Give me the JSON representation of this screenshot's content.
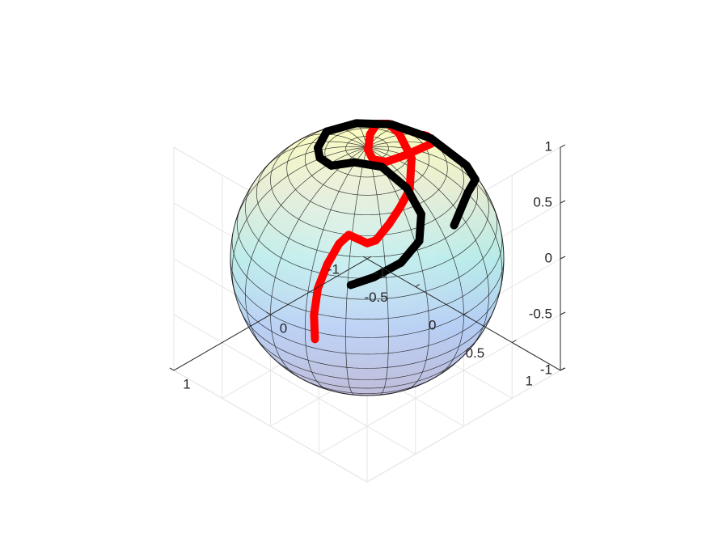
{
  "chart_data": {
    "type": "scatter",
    "subtype": "3d-sphere-trajectories",
    "title": "",
    "xlabel": "",
    "ylabel": "",
    "zlabel": "",
    "xlim": [
      -1,
      1
    ],
    "ylim": [
      -1,
      1
    ],
    "zlim": [
      -1,
      1
    ],
    "x_ticks": [
      "-1",
      "0",
      "1"
    ],
    "y_ticks": [
      "-1",
      "-0.5",
      "0",
      "0.5",
      "1"
    ],
    "z_ticks": [
      "-1",
      "-0.5",
      "0",
      "0.5",
      "1"
    ],
    "grid": true,
    "surface": {
      "shape": "unit-sphere",
      "colormap": "parula",
      "transparent": true
    },
    "colors": {
      "series_red": "#ff0000",
      "series_black": "#000000",
      "axis": "#262626",
      "grid": "#e6e6e6",
      "mesh": "#1a1a1a"
    },
    "series": [
      {
        "color": "red",
        "points": [
          [
            0.1,
            -0.44,
            -0.89
          ],
          [
            -0.03,
            -0.58,
            -0.81
          ],
          [
            -0.18,
            -0.69,
            -0.7
          ],
          [
            -0.33,
            -0.74,
            -0.58
          ],
          [
            -0.46,
            -0.75,
            -0.47
          ],
          [
            -0.54,
            -0.73,
            -0.42
          ],
          [
            -0.58,
            -0.68,
            -0.45
          ],
          [
            -0.62,
            -0.62,
            -0.48
          ],
          [
            -0.67,
            -0.58,
            -0.46
          ],
          [
            -0.77,
            -0.54,
            -0.34
          ],
          [
            -0.84,
            -0.5,
            -0.21
          ],
          [
            -0.89,
            -0.45,
            -0.05
          ],
          [
            -0.87,
            -0.41,
            0.26
          ],
          [
            -0.73,
            -0.4,
            0.56
          ],
          [
            -0.56,
            -0.34,
            0.76
          ],
          [
            -0.36,
            -0.26,
            0.9
          ],
          [
            -0.15,
            -0.12,
            0.98
          ],
          [
            0.02,
            0.03,
            1.0
          ],
          [
            0.07,
            0.13,
            0.99
          ],
          [
            0.01,
            0.21,
            0.98
          ],
          [
            -0.17,
            0.23,
            0.96
          ],
          [
            -0.37,
            0.2,
            0.91
          ],
          [
            -0.52,
            0.14,
            0.84
          ],
          [
            -0.62,
            0.05,
            0.78
          ],
          [
            -0.68,
            -0.06,
            0.73
          ],
          [
            -0.72,
            -0.14,
            0.68
          ]
        ]
      },
      {
        "color": "black",
        "points": [
          [
            -0.13,
            0.77,
            0.62
          ],
          [
            -0.44,
            0.6,
            0.67
          ],
          [
            -0.68,
            0.44,
            0.59
          ],
          [
            -0.78,
            0.25,
            0.57
          ],
          [
            -0.7,
            -0.04,
            0.71
          ],
          [
            -0.54,
            -0.29,
            0.79
          ],
          [
            -0.39,
            -0.5,
            0.77
          ],
          [
            -0.29,
            -0.71,
            0.64
          ],
          [
            -0.34,
            -0.85,
            0.4
          ],
          [
            -0.39,
            -0.88,
            0.27
          ],
          [
            -0.49,
            -0.86,
            0.16
          ],
          [
            -0.63,
            -0.76,
            0.17
          ],
          [
            -0.77,
            -0.62,
            0.13
          ],
          [
            -0.88,
            -0.47,
            -0.04
          ],
          [
            -0.91,
            -0.35,
            -0.23
          ],
          [
            -0.85,
            -0.31,
            -0.42
          ],
          [
            -0.72,
            -0.37,
            -0.58
          ],
          [
            -0.55,
            -0.48,
            -0.68
          ],
          [
            -0.4,
            -0.57,
            -0.72
          ]
        ]
      }
    ]
  }
}
